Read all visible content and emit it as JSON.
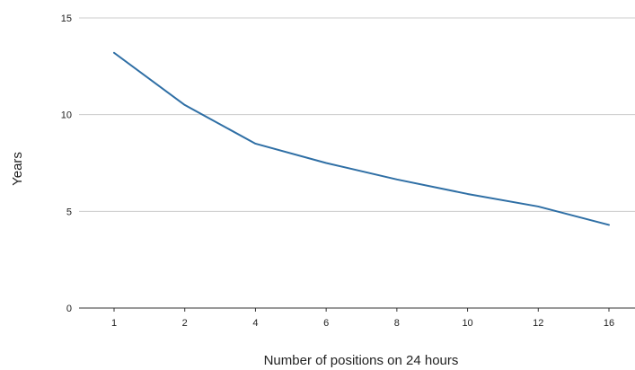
{
  "chart_data": {
    "type": "line",
    "title": "",
    "xlabel": "Number of positions on 24 hours",
    "ylabel": "Years",
    "categories": [
      "1",
      "2",
      "4",
      "6",
      "8",
      "10",
      "12",
      "16"
    ],
    "series": [
      {
        "values": [
          13.2,
          10.5,
          8.5,
          7.5,
          6.65,
          5.9,
          5.25,
          4.3
        ]
      }
    ],
    "ylim": [
      0,
      15
    ],
    "yticks": [
      "0",
      "5",
      "10",
      "15"
    ],
    "grid": true,
    "legend": "none",
    "line_color": "#2f6fa5",
    "grid_color": "#cccccc",
    "axis_color": "#333333"
  }
}
